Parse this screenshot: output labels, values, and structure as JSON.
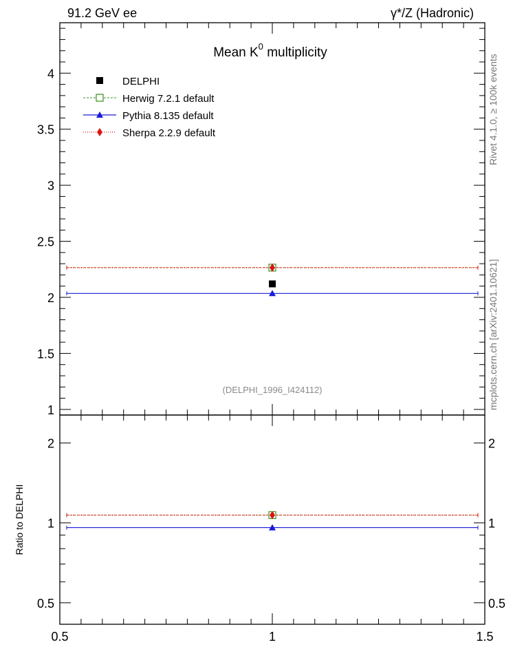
{
  "header": {
    "left": "91.2 GeV ee",
    "right": "γ*/Z (Hadronic)"
  },
  "side_text": {
    "rivet": "Rivet 4.1.0, ≥ 100k events",
    "source": "mcplots.cern.ch [arXiv:2401.10621]"
  },
  "colors": {
    "data": "#000000",
    "herwig": "#3a8f1c",
    "pythia": "#1a1adc",
    "sherpa": "#dc1414",
    "herwig_line": "#b05e1e",
    "watermark": "#8a8a8a"
  },
  "chart_data": [
    {
      "type": "scatter",
      "panel": "main",
      "title": "Mean K",
      "title_sup": "0",
      "title_suffix": "multiplicity",
      "watermark": "(DELPHI_1996_I424112)",
      "xlabel": "",
      "ylabel": "",
      "xlim": [
        0.5,
        1.5
      ],
      "ylim": [
        0.95,
        4.45
      ],
      "yticks": [
        1,
        1.5,
        2,
        2.5,
        3,
        3.5,
        4
      ],
      "ytick_labels": [
        "1",
        "1.5",
        "2",
        "2.5",
        "3",
        "3.5",
        "4"
      ],
      "legend_position": "top-left",
      "series": [
        {
          "name": "DELPHI",
          "key": "data",
          "marker": "square",
          "line": "none",
          "points": [
            {
              "x": 1,
              "y": 2.12
            }
          ]
        },
        {
          "name": "Herwig 7.2.1 default",
          "key": "herwig",
          "marker": "open-square",
          "line": "dashed",
          "points": [
            {
              "x": 1,
              "y": 2.265
            }
          ]
        },
        {
          "name": "Pythia 8.135 default",
          "key": "pythia",
          "marker": "triangle",
          "line": "solid",
          "points": [
            {
              "x": 1,
              "y": 2.035
            }
          ]
        },
        {
          "name": "Sherpa 2.2.9 default",
          "key": "sherpa",
          "marker": "diamond",
          "line": "dotted",
          "points": [
            {
              "x": 1,
              "y": 2.265
            }
          ]
        }
      ]
    },
    {
      "type": "scatter",
      "panel": "ratio",
      "ylabel": "Ratio to DELPHI",
      "xlim": [
        0.5,
        1.5
      ],
      "ylim": [
        0.415,
        2.55
      ],
      "yscale": "log",
      "yticks": [
        0.5,
        1,
        2
      ],
      "ytick_labels": [
        "0.5",
        "1",
        "2"
      ],
      "xticks": [
        0.5,
        1,
        1.5
      ],
      "xtick_labels": [
        "0.5",
        "1",
        "1.5"
      ],
      "series": [
        {
          "name": "Herwig 7.2.1 default",
          "key": "herwig",
          "points": [
            {
              "x": 1,
              "y": 1.07
            }
          ]
        },
        {
          "name": "Pythia 8.135 default",
          "key": "pythia",
          "points": [
            {
              "x": 1,
              "y": 0.96
            }
          ]
        },
        {
          "name": "Sherpa 2.2.9 default",
          "key": "sherpa",
          "points": [
            {
              "x": 1,
              "y": 1.07
            }
          ]
        }
      ]
    }
  ]
}
